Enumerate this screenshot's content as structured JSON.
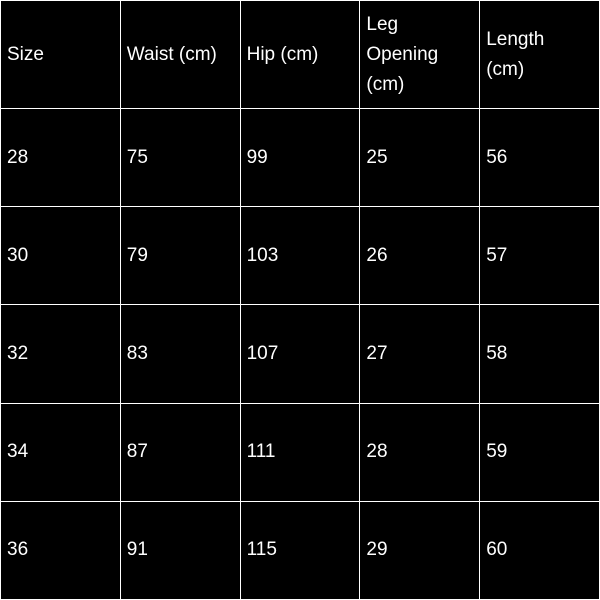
{
  "table": {
    "header": [
      "Size",
      "Waist (cm)",
      "Hip (cm)",
      "Leg Opening (cm)",
      "Length (cm)"
    ],
    "rows": [
      [
        28,
        75,
        99,
        25,
        56
      ],
      [
        30,
        79,
        103,
        26,
        57
      ],
      [
        32,
        83,
        107,
        27,
        58
      ],
      [
        34,
        87,
        111,
        28,
        59
      ],
      [
        36,
        91,
        115,
        29,
        60
      ]
    ]
  }
}
